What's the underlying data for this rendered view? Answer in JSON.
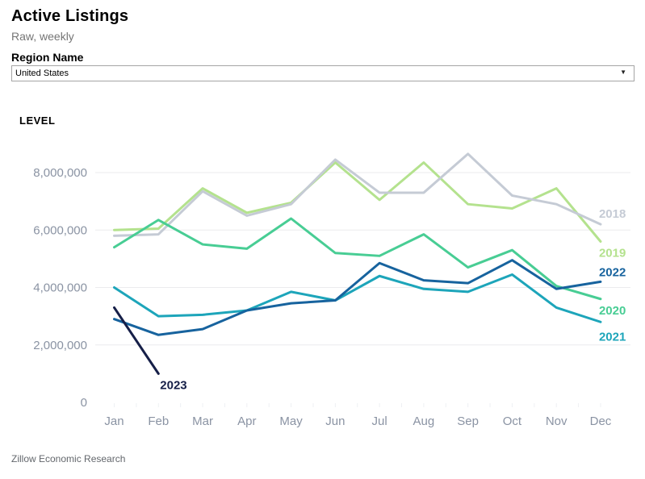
{
  "header": {
    "title": "Active Listings",
    "subtitle": "Raw, weekly"
  },
  "region_filter": {
    "label": "Region Name",
    "selected": "United States"
  },
  "footer": {
    "credit": "Zillow Economic Research"
  },
  "chart_data": {
    "type": "line",
    "axis_title": "LEVEL",
    "x_categories": [
      "Jan",
      "Feb",
      "Mar",
      "Apr",
      "May",
      "Jun",
      "Jul",
      "Aug",
      "Sep",
      "Oct",
      "Nov",
      "Dec"
    ],
    "y_ticks": [
      {
        "value": 0,
        "label": "0"
      },
      {
        "value": 2000000,
        "label": "2,000,000"
      },
      {
        "value": 4000000,
        "label": "4,000,000"
      },
      {
        "value": 6000000,
        "label": "6,000,000"
      },
      {
        "value": 8000000,
        "label": "8,000,000"
      }
    ],
    "ylim": [
      0,
      9000000
    ],
    "grid": "horizontal",
    "legend_position": "line-end-labels",
    "axis_text_color": "#8a93a3",
    "grid_color": "#ebebee",
    "tick_color": "#eef0f3",
    "draw_order": [
      1,
      0,
      2,
      3,
      4,
      5
    ],
    "series": [
      {
        "name": "2018",
        "color": "#c5cbd5",
        "label_dx": -2,
        "label_dy": -13,
        "values": [
          5800000,
          5850000,
          7350000,
          6500000,
          6900000,
          8450000,
          7300000,
          7300000,
          8650000,
          7200000,
          6900000,
          6200000
        ]
      },
      {
        "name": "2019",
        "color": "#b4e28e",
        "label_dx": -2,
        "label_dy": 14,
        "values": [
          6000000,
          6050000,
          7450000,
          6600000,
          6950000,
          8350000,
          7050000,
          8350000,
          6900000,
          6750000,
          7450000,
          5600000
        ]
      },
      {
        "name": "2020",
        "color": "#48cd94",
        "label_dx": -2,
        "label_dy": 14,
        "values": [
          5400000,
          6350000,
          5500000,
          5350000,
          6400000,
          5200000,
          5100000,
          5850000,
          4700000,
          5300000,
          4050000,
          3600000
        ]
      },
      {
        "name": "2021",
        "color": "#1da5ba",
        "label_dx": -2,
        "label_dy": 18,
        "values": [
          4000000,
          3000000,
          3050000,
          3200000,
          3850000,
          3550000,
          4400000,
          3950000,
          3850000,
          4450000,
          3300000,
          2800000
        ]
      },
      {
        "name": "2022",
        "color": "#17639e",
        "label_dx": -2,
        "label_dy": -12,
        "values": [
          2900000,
          2350000,
          2550000,
          3200000,
          3450000,
          3550000,
          4850000,
          4250000,
          4150000,
          4950000,
          3950000,
          4200000
        ]
      },
      {
        "name": "2023",
        "color": "#161f48",
        "label_dx": 2,
        "label_dy": 14,
        "values": [
          3300000,
          1000000
        ]
      }
    ]
  }
}
